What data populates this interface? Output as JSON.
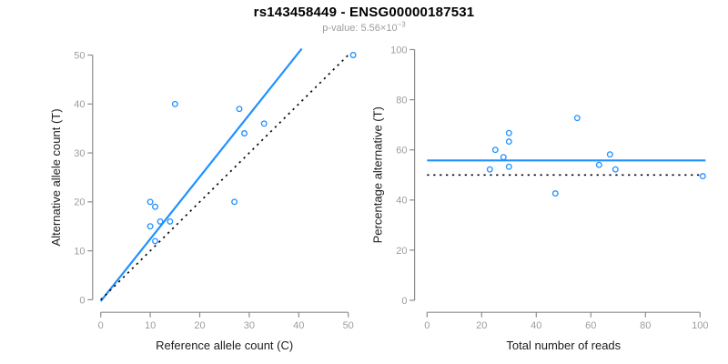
{
  "header": {
    "title": "rs143458449 - ENSG00000187531",
    "pvalue_label": "p-value:",
    "pvalue_mantissa": "5.56",
    "pvalue_times": "×10",
    "pvalue_exponent": "−3"
  },
  "colors": {
    "accent_blue": "#1e90ff",
    "identity_black": "#0a0a0a",
    "axis_gray": "#8c8c8c",
    "tick_label_gray": "#9d9d9d",
    "label_dark": "#1c1c1c",
    "subtitle_gray": "#9d9d9d",
    "title_black": "#000000",
    "background": "#ffffff"
  },
  "chart_data": [
    {
      "type": "scatter",
      "panel": "left",
      "xlabel": "Reference allele count (C)",
      "ylabel": "Alternative allele count (T)",
      "xlim": [
        0,
        50
      ],
      "ylim": [
        0,
        50
      ],
      "x_ticks": [
        0,
        10,
        20,
        30,
        40,
        50
      ],
      "y_ticks": [
        0,
        10,
        20,
        30,
        40,
        50
      ],
      "grid": false,
      "marker": "open-circle",
      "points": [
        [
          15,
          40
        ],
        [
          28,
          39
        ],
        [
          33,
          36
        ],
        [
          29,
          34
        ],
        [
          51,
          50
        ],
        [
          27,
          20
        ],
        [
          10,
          20
        ],
        [
          11,
          19
        ],
        [
          12,
          16
        ],
        [
          14,
          16
        ],
        [
          10,
          15
        ],
        [
          11,
          12
        ]
      ],
      "lines": [
        {
          "name": "fit-line",
          "style": "solid",
          "color_key": "accent_blue",
          "from": [
            0,
            -0.3
          ],
          "to": [
            40.6,
            51.3
          ]
        },
        {
          "name": "identity-line",
          "style": "dotted",
          "color_key": "identity_black",
          "from": [
            0,
            0
          ],
          "to": [
            50.5,
            50.5
          ]
        }
      ]
    },
    {
      "type": "scatter",
      "panel": "right",
      "xlabel": "Total number of reads",
      "ylabel": "Percentage alternative (T)",
      "xlim": [
        0,
        100
      ],
      "ylim": [
        0,
        100
      ],
      "x_ticks": [
        0,
        20,
        40,
        60,
        80,
        100
      ],
      "y_ticks": [
        0,
        20,
        40,
        60,
        80,
        100
      ],
      "grid": false,
      "marker": "open-circle",
      "points": [
        [
          55,
          72.7
        ],
        [
          67,
          58.2
        ],
        [
          69,
          52.2
        ],
        [
          63,
          54.0
        ],
        [
          101,
          49.5
        ],
        [
          47,
          42.6
        ],
        [
          30,
          66.7
        ],
        [
          30,
          63.3
        ],
        [
          28,
          57.1
        ],
        [
          30,
          53.3
        ],
        [
          25,
          60.0
        ],
        [
          23,
          52.2
        ]
      ],
      "lines": [
        {
          "name": "mean-percentage-line",
          "style": "solid",
          "color_key": "accent_blue",
          "from": [
            0,
            55.8
          ],
          "to": [
            102,
            55.8
          ]
        },
        {
          "name": "null-50-percent-line",
          "style": "dotted",
          "color_key": "identity_black",
          "from": [
            0,
            50
          ],
          "to": [
            100.5,
            50
          ]
        }
      ]
    }
  ]
}
